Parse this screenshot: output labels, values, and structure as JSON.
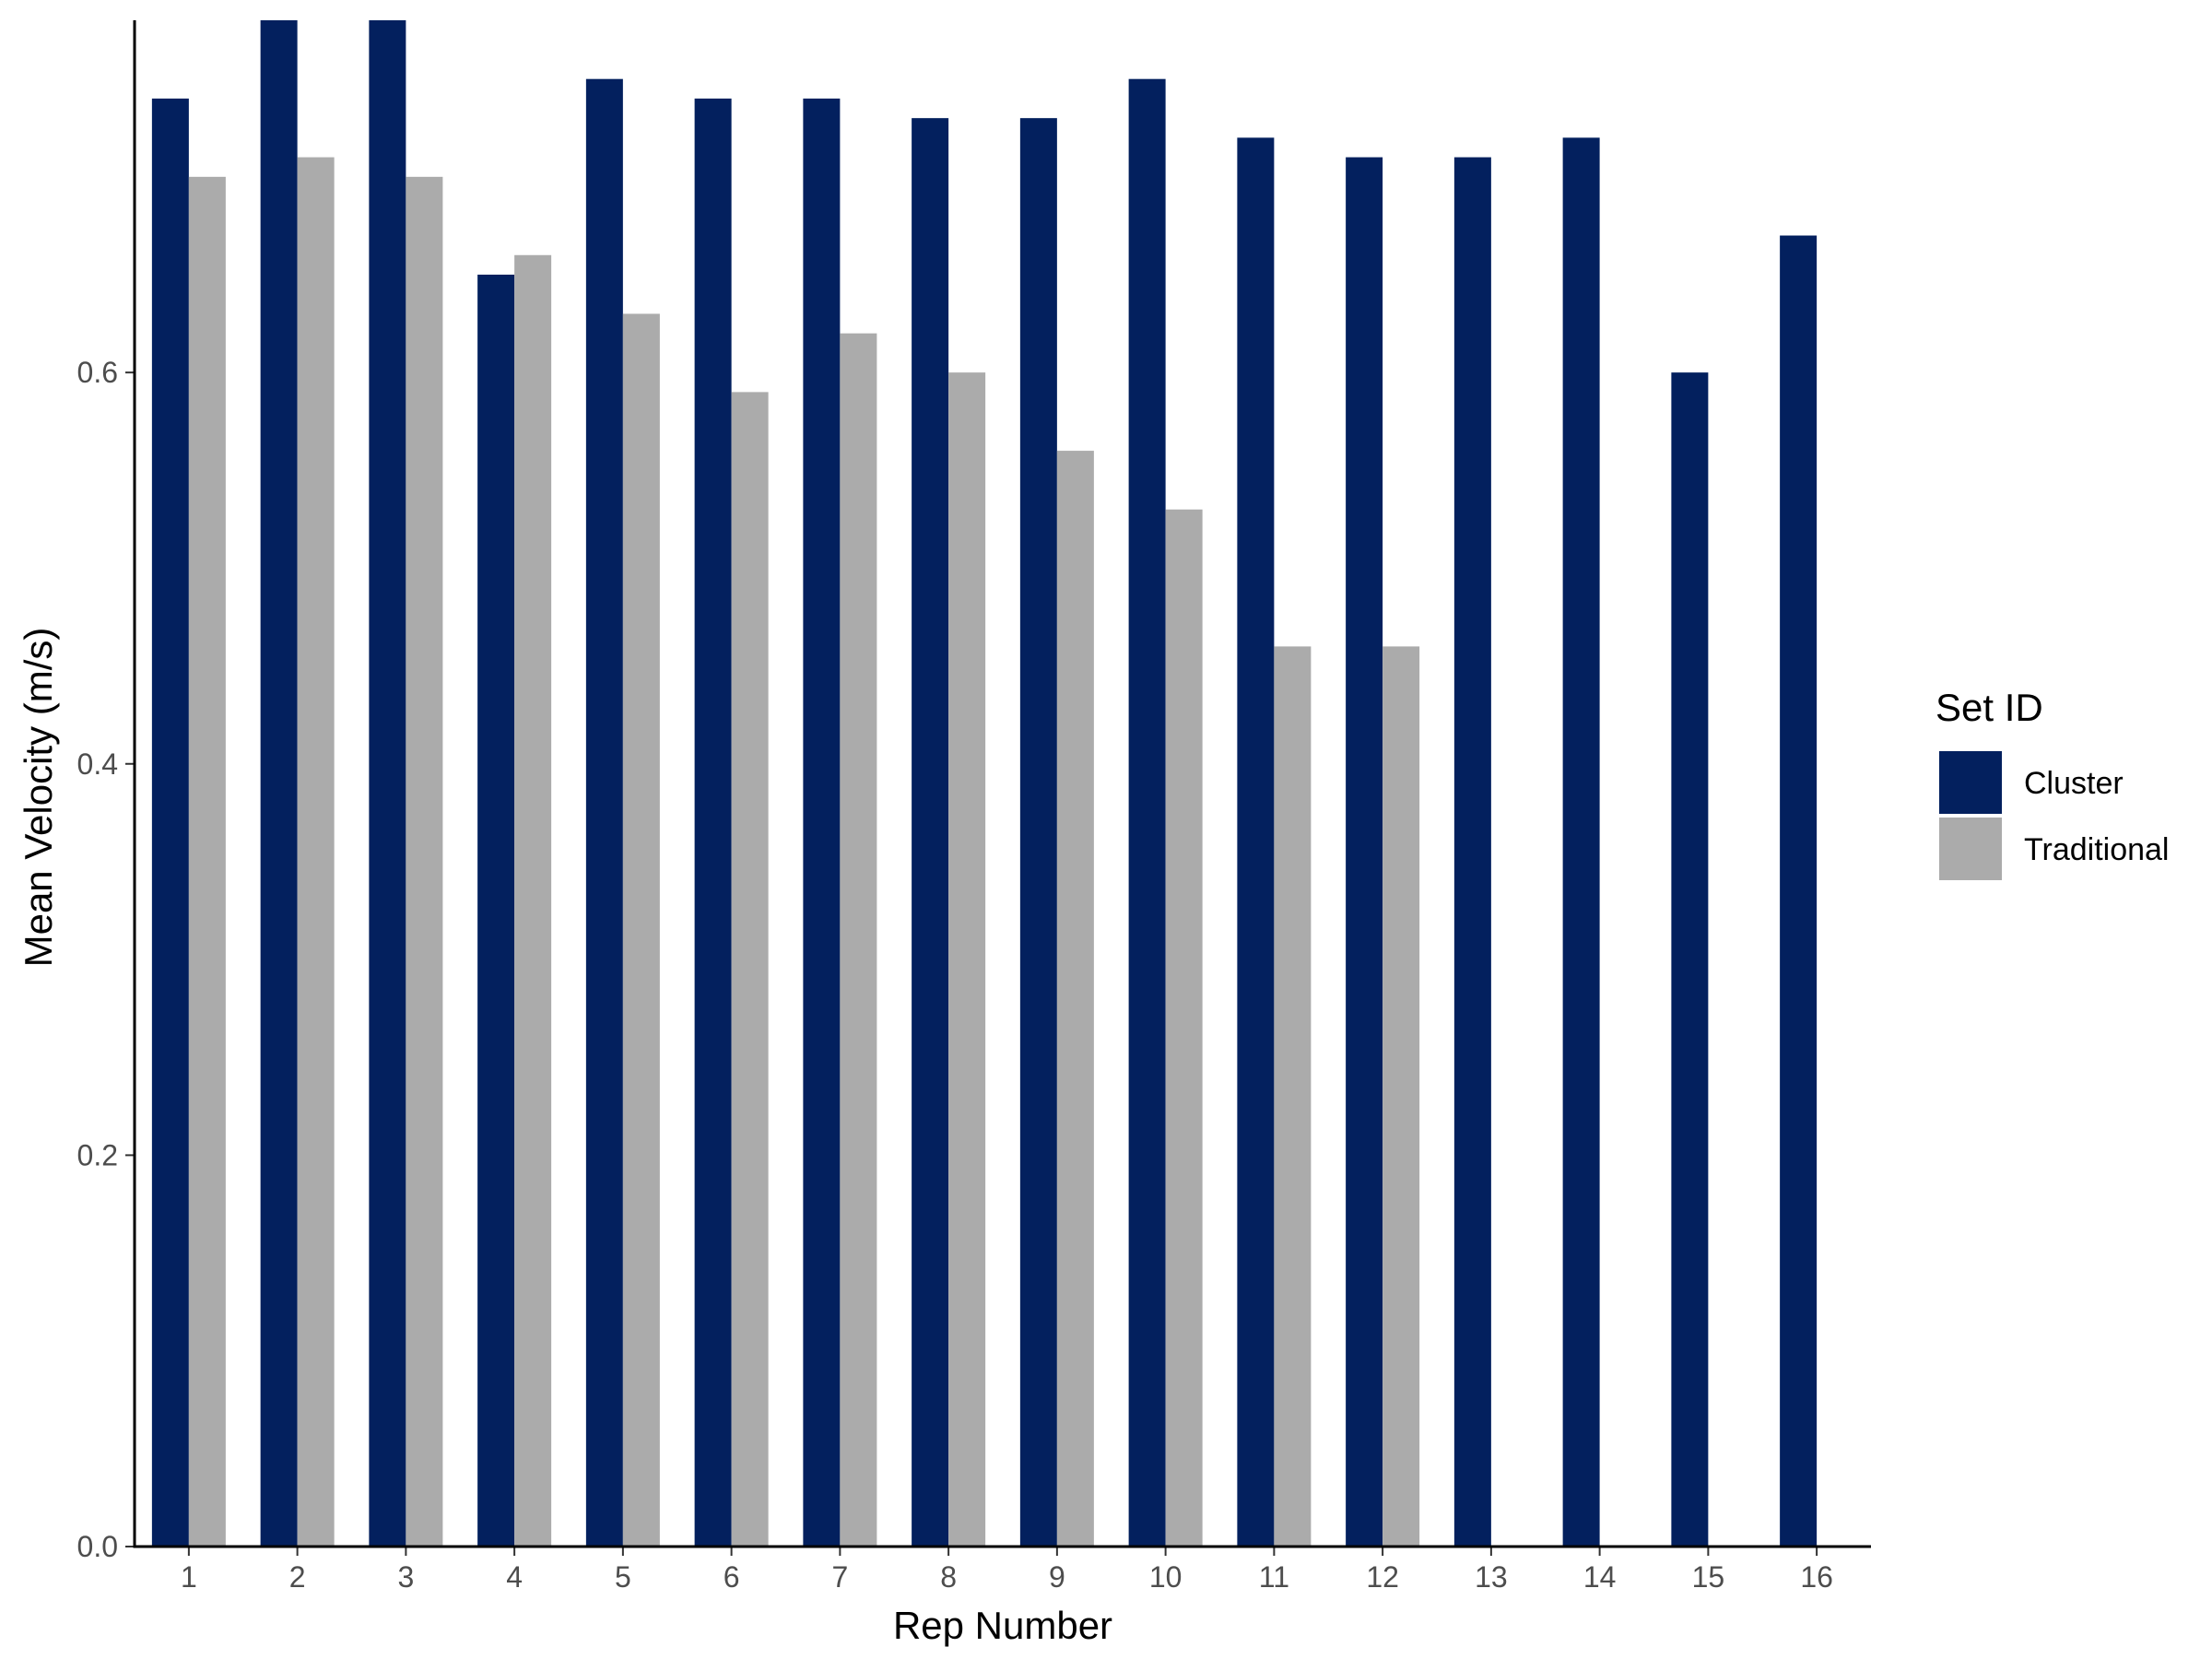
{
  "chart_data": {
    "type": "bar",
    "xlabel": "Rep Number",
    "ylabel": "Mean Velocity (m/s)",
    "categories": [
      "1",
      "2",
      "3",
      "4",
      "5",
      "6",
      "7",
      "8",
      "9",
      "10",
      "11",
      "12",
      "13",
      "14",
      "15",
      "16"
    ],
    "ylim": [
      0,
      0.78
    ],
    "yticks": [
      0.0,
      0.2,
      0.4,
      0.6
    ],
    "ytick_labels": [
      "0.0",
      "0.2",
      "0.4",
      "0.6"
    ],
    "grid": false,
    "legend": {
      "title": "Set ID",
      "position": "right"
    },
    "series": [
      {
        "name": "Cluster",
        "color": "#03205E",
        "values": [
          0.74,
          0.78,
          0.78,
          0.65,
          0.75,
          0.74,
          0.74,
          0.73,
          0.73,
          0.75,
          0.72,
          0.71,
          0.71,
          0.72,
          0.6,
          0.67
        ]
      },
      {
        "name": "Traditional",
        "color": "#ABABAB",
        "values": [
          0.7,
          0.71,
          0.7,
          0.66,
          0.63,
          0.59,
          0.62,
          0.6,
          0.56,
          0.53,
          0.46,
          0.46,
          null,
          null,
          null,
          null
        ]
      }
    ]
  }
}
